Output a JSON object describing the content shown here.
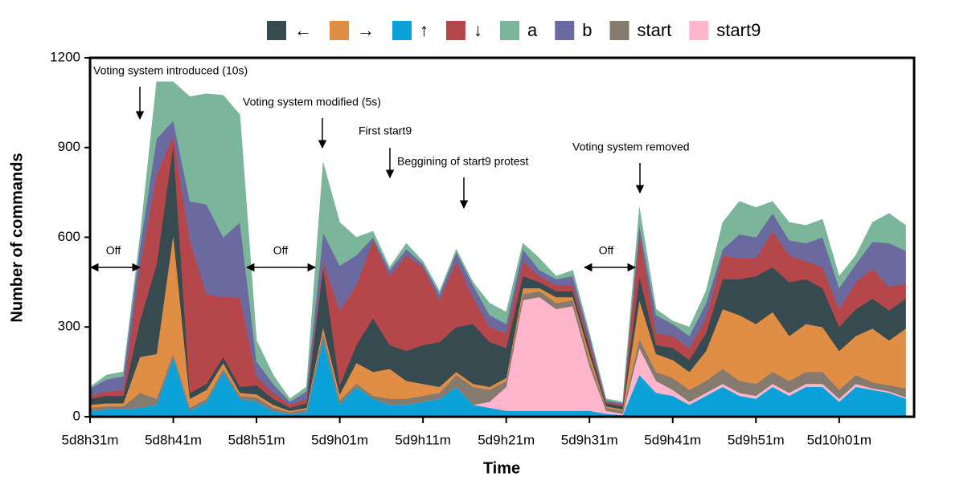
{
  "chart_data": {
    "type": "stacked_area",
    "x_label": "Time",
    "y_label": "Number of commands",
    "xlim": [
      7711,
      7810
    ],
    "xticks": [
      {
        "value": 7711,
        "label": "5d8h31m"
      },
      {
        "value": 7721,
        "label": "5d8h41m"
      },
      {
        "value": 7731,
        "label": "5d8h51m"
      },
      {
        "value": 7741,
        "label": "5d9h01m"
      },
      {
        "value": 7751,
        "label": "5d9h11m"
      },
      {
        "value": 7761,
        "label": "5d9h21m"
      },
      {
        "value": 7771,
        "label": "5d9h31m"
      },
      {
        "value": 7781,
        "label": "5d9h41m"
      },
      {
        "value": 7791,
        "label": "5d9h51m"
      },
      {
        "value": 7801,
        "label": "5d10h01m"
      }
    ],
    "ylim": [
      0,
      1200
    ],
    "yticks": [
      0,
      300,
      600,
      900,
      1200
    ],
    "x": [
      7711,
      7713,
      7715,
      7717,
      7719,
      7721,
      7723,
      7725,
      7727,
      7729,
      7731,
      7733,
      7735,
      7737,
      7739,
      7741,
      7743,
      7745,
      7747,
      7749,
      7751,
      7753,
      7755,
      7757,
      7759,
      7761,
      7763,
      7765,
      7767,
      7769,
      7771,
      7773,
      7775,
      7777,
      7779,
      7781,
      7783,
      7785,
      7787,
      7789,
      7791,
      7793,
      7795,
      7797,
      7799,
      7801,
      7803,
      7805,
      7807,
      7809
    ],
    "legend_order": [
      "←",
      "→",
      "↑",
      "↓",
      "a",
      "b",
      "start",
      "start9"
    ],
    "series": [
      {
        "name": "↑",
        "color": "#0aa0d8",
        "values": [
          20,
          25,
          25,
          30,
          40,
          200,
          20,
          50,
          150,
          60,
          50,
          20,
          10,
          15,
          260,
          40,
          100,
          60,
          40,
          40,
          50,
          60,
          100,
          40,
          30,
          20,
          20,
          20,
          20,
          20,
          20,
          10,
          5,
          140,
          80,
          70,
          40,
          70,
          100,
          70,
          60,
          100,
          70,
          100,
          100,
          50,
          100,
          90,
          80,
          60
        ]
      },
      {
        "name": "start9",
        "color": "#ffb6cc",
        "values": [
          0,
          0,
          0,
          0,
          0,
          0,
          0,
          0,
          0,
          0,
          0,
          0,
          0,
          0,
          0,
          0,
          0,
          0,
          0,
          0,
          0,
          0,
          0,
          0,
          20,
          80,
          370,
          380,
          340,
          350,
          150,
          10,
          5,
          90,
          40,
          20,
          10,
          10,
          10,
          10,
          10,
          10,
          10,
          10,
          10,
          10,
          10,
          5,
          5,
          5
        ]
      },
      {
        "name": "start",
        "color": "#857a6e",
        "values": [
          10,
          10,
          10,
          50,
          20,
          10,
          10,
          10,
          10,
          10,
          15,
          10,
          5,
          10,
          20,
          15,
          10,
          10,
          20,
          20,
          20,
          20,
          40,
          60,
          40,
          20,
          20,
          20,
          20,
          20,
          20,
          10,
          10,
          30,
          30,
          40,
          40,
          40,
          50,
          40,
          40,
          40,
          40,
          40,
          40,
          30,
          30,
          20,
          20,
          30
        ]
      },
      {
        "name": "→",
        "color": "#e08e45",
        "values": [
          10,
          10,
          10,
          120,
          150,
          400,
          30,
          30,
          20,
          10,
          10,
          10,
          5,
          5,
          20,
          20,
          70,
          80,
          100,
          60,
          40,
          20,
          10,
          10,
          10,
          10,
          20,
          10,
          20,
          10,
          20,
          5,
          5,
          130,
          60,
          60,
          60,
          100,
          200,
          220,
          200,
          200,
          150,
          160,
          150,
          130,
          130,
          180,
          150,
          200
        ]
      },
      {
        "name": "←",
        "color": "#364b50",
        "values": [
          20,
          25,
          25,
          120,
          300,
          300,
          20,
          20,
          20,
          20,
          30,
          20,
          10,
          15,
          200,
          30,
          60,
          180,
          80,
          100,
          130,
          150,
          150,
          200,
          150,
          100,
          40,
          20,
          20,
          20,
          20,
          10,
          10,
          80,
          30,
          40,
          40,
          60,
          100,
          120,
          160,
          150,
          180,
          150,
          130,
          80,
          90,
          100,
          100,
          100
        ]
      },
      {
        "name": "↓",
        "color": "#b5474a",
        "values": [
          10,
          15,
          20,
          180,
          300,
          30,
          510,
          300,
          200,
          300,
          30,
          20,
          10,
          15,
          20,
          250,
          200,
          260,
          230,
          320,
          260,
          140,
          220,
          90,
          50,
          50,
          50,
          20,
          20,
          20,
          20,
          5,
          5,
          140,
          40,
          40,
          40,
          50,
          80,
          70,
          60,
          120,
          90,
          60,
          70,
          60,
          90,
          100,
          80,
          50
        ]
      },
      {
        "name": "b",
        "color": "#6b6aa0",
        "values": [
          25,
          40,
          45,
          70,
          120,
          50,
          130,
          300,
          200,
          250,
          50,
          30,
          10,
          25,
          95,
          150,
          100,
          10,
          20,
          20,
          10,
          20,
          30,
          40,
          40,
          30,
          40,
          20,
          20,
          30,
          20,
          5,
          5,
          30,
          60,
          40,
          40,
          50,
          20,
          80,
          70,
          60,
          50,
          60,
          100,
          70,
          60,
          90,
          145,
          110
        ]
      },
      {
        "name": "a",
        "color": "#7bb59a",
        "values": [
          5,
          15,
          15,
          30,
          190,
          130,
          350,
          370,
          475,
          360,
          70,
          30,
          10,
          15,
          235,
          145,
          60,
          20,
          10,
          20,
          10,
          10,
          10,
          10,
          40,
          40,
          20,
          40,
          10,
          20,
          10,
          5,
          5,
          60,
          20,
          10,
          30,
          40,
          90,
          110,
          100,
          40,
          60,
          60,
          60,
          40,
          30,
          65,
          100,
          85
        ]
      }
    ],
    "annotations": [
      "Voting system introduced (10s)",
      "Voting system modified (5s)",
      "First start9",
      "Beggining of start9 protest",
      "Voting system removed",
      "Off",
      "Off",
      "Off"
    ]
  }
}
